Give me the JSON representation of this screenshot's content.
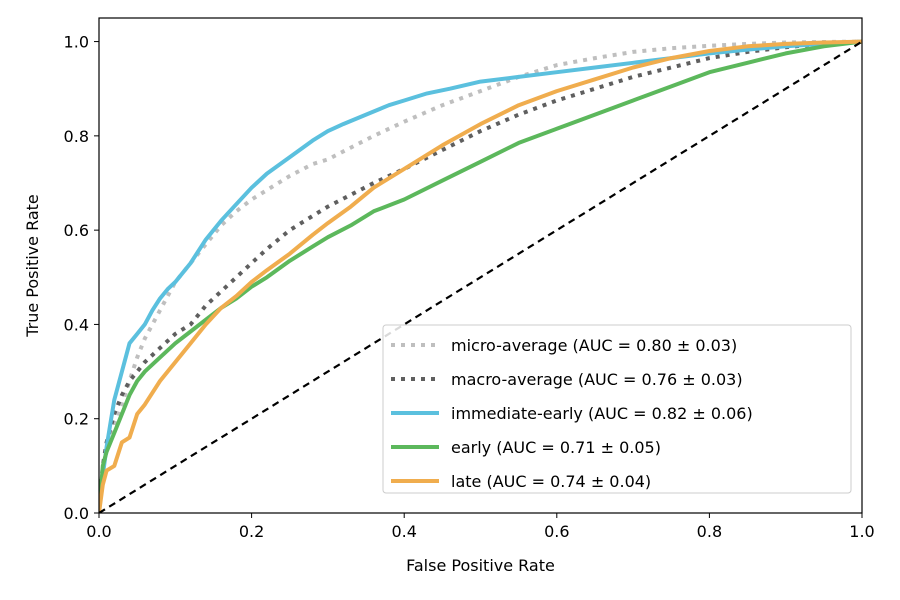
{
  "chart_data": {
    "type": "line",
    "title": "",
    "xlabel": "False Positive Rate",
    "ylabel": "True Positive Rate",
    "xlim": [
      0.0,
      1.0
    ],
    "ylim": [
      0.0,
      1.05
    ],
    "xticks": [
      "0.0",
      "0.2",
      "0.4",
      "0.6",
      "0.8",
      "1.0"
    ],
    "yticks": [
      "0.0",
      "0.2",
      "0.4",
      "0.6",
      "0.8",
      "1.0"
    ],
    "grid": false,
    "legend_position": "lower-right",
    "series": [
      {
        "name": "micro-average (AUC = 0.80 ± 0.03)",
        "color": "#bfbfbf",
        "style": "dotted",
        "x": [
          0,
          0.005,
          0.01,
          0.02,
          0.03,
          0.04,
          0.05,
          0.06,
          0.08,
          0.1,
          0.12,
          0.14,
          0.16,
          0.18,
          0.2,
          0.22,
          0.25,
          0.28,
          0.3,
          0.33,
          0.36,
          0.4,
          0.45,
          0.5,
          0.55,
          0.6,
          0.65,
          0.7,
          0.75,
          0.8,
          0.85,
          0.9,
          0.95,
          1.0
        ],
        "y": [
          0,
          0.1,
          0.14,
          0.18,
          0.23,
          0.28,
          0.33,
          0.37,
          0.43,
          0.49,
          0.53,
          0.57,
          0.61,
          0.64,
          0.665,
          0.685,
          0.715,
          0.74,
          0.75,
          0.775,
          0.8,
          0.83,
          0.865,
          0.895,
          0.925,
          0.95,
          0.965,
          0.978,
          0.986,
          0.991,
          0.995,
          0.998,
          0.999,
          1.0
        ]
      },
      {
        "name": "macro-average (AUC = 0.76 ± 0.03)",
        "color": "#5f5f5f",
        "style": "dotted",
        "x": [
          0,
          0.005,
          0.01,
          0.02,
          0.03,
          0.04,
          0.05,
          0.06,
          0.08,
          0.1,
          0.12,
          0.14,
          0.16,
          0.18,
          0.2,
          0.22,
          0.25,
          0.28,
          0.3,
          0.33,
          0.36,
          0.4,
          0.45,
          0.5,
          0.55,
          0.6,
          0.65,
          0.7,
          0.75,
          0.8,
          0.85,
          0.9,
          0.95,
          1.0
        ],
        "y": [
          0,
          0.1,
          0.15,
          0.21,
          0.25,
          0.28,
          0.3,
          0.32,
          0.35,
          0.38,
          0.4,
          0.44,
          0.47,
          0.5,
          0.53,
          0.56,
          0.6,
          0.63,
          0.65,
          0.675,
          0.7,
          0.73,
          0.77,
          0.81,
          0.845,
          0.875,
          0.9,
          0.925,
          0.945,
          0.965,
          0.978,
          0.988,
          0.995,
          1.0
        ]
      },
      {
        "name": "immediate-early (AUC = 0.82 ± 0.06)",
        "color": "#5bc0de",
        "style": "solid",
        "x": [
          0,
          0.005,
          0.01,
          0.015,
          0.02,
          0.03,
          0.04,
          0.05,
          0.06,
          0.07,
          0.08,
          0.09,
          0.1,
          0.12,
          0.14,
          0.16,
          0.18,
          0.2,
          0.22,
          0.25,
          0.28,
          0.3,
          0.32,
          0.35,
          0.38,
          0.4,
          0.43,
          0.46,
          0.5,
          0.55,
          0.6,
          0.65,
          0.7,
          0.75,
          0.8,
          0.85,
          0.9,
          0.95,
          1.0
        ],
        "y": [
          0,
          0.08,
          0.14,
          0.19,
          0.24,
          0.3,
          0.36,
          0.38,
          0.4,
          0.43,
          0.455,
          0.475,
          0.49,
          0.53,
          0.58,
          0.62,
          0.655,
          0.69,
          0.72,
          0.755,
          0.79,
          0.81,
          0.825,
          0.845,
          0.865,
          0.875,
          0.89,
          0.9,
          0.915,
          0.925,
          0.935,
          0.945,
          0.955,
          0.965,
          0.975,
          0.983,
          0.99,
          0.995,
          1.0
        ]
      },
      {
        "name": "early (AUC = 0.71 ± 0.05)",
        "color": "#5cb85c",
        "style": "solid",
        "x": [
          0,
          0.005,
          0.01,
          0.02,
          0.03,
          0.04,
          0.05,
          0.06,
          0.08,
          0.1,
          0.12,
          0.14,
          0.16,
          0.18,
          0.2,
          0.22,
          0.25,
          0.28,
          0.3,
          0.33,
          0.36,
          0.4,
          0.45,
          0.5,
          0.55,
          0.6,
          0.65,
          0.7,
          0.75,
          0.8,
          0.85,
          0.9,
          0.95,
          1.0
        ],
        "y": [
          0,
          0.1,
          0.13,
          0.17,
          0.21,
          0.25,
          0.28,
          0.3,
          0.33,
          0.36,
          0.385,
          0.41,
          0.435,
          0.455,
          0.48,
          0.5,
          0.535,
          0.565,
          0.585,
          0.61,
          0.64,
          0.665,
          0.705,
          0.745,
          0.785,
          0.815,
          0.845,
          0.875,
          0.905,
          0.935,
          0.955,
          0.975,
          0.99,
          1.0
        ]
      },
      {
        "name": "late (AUC = 0.74 ± 0.04)",
        "color": "#f0ad4e",
        "style": "solid",
        "x": [
          0,
          0.005,
          0.01,
          0.02,
          0.03,
          0.04,
          0.05,
          0.06,
          0.08,
          0.1,
          0.12,
          0.14,
          0.16,
          0.18,
          0.2,
          0.22,
          0.25,
          0.28,
          0.3,
          0.33,
          0.36,
          0.4,
          0.45,
          0.5,
          0.55,
          0.6,
          0.65,
          0.7,
          0.75,
          0.8,
          0.85,
          0.9,
          0.95,
          1.0
        ],
        "y": [
          0,
          0.06,
          0.09,
          0.1,
          0.15,
          0.16,
          0.21,
          0.23,
          0.28,
          0.32,
          0.36,
          0.4,
          0.435,
          0.46,
          0.49,
          0.515,
          0.55,
          0.59,
          0.615,
          0.65,
          0.69,
          0.73,
          0.78,
          0.825,
          0.865,
          0.895,
          0.92,
          0.945,
          0.965,
          0.98,
          0.99,
          0.995,
          0.998,
          1.0
        ]
      },
      {
        "name": "",
        "color": "#000000",
        "style": "dashed",
        "x": [
          0,
          1.0
        ],
        "y": [
          0,
          1.0
        ]
      }
    ]
  }
}
